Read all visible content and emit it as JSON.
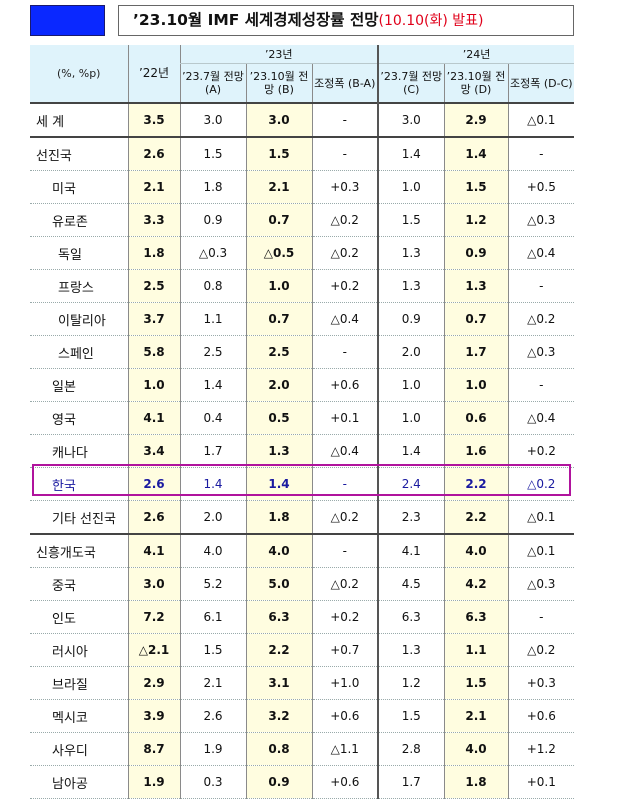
{
  "header": {
    "title_main": "’23.10월 IMF 세계경제성장률 전망",
    "title_note": "(10.10(화) 발표)"
  },
  "table": {
    "unit": "(%, %p)",
    "col_22": "’22년",
    "group_23": "’23년",
    "group_24": "’24년",
    "sub_headers": [
      "’23.7월 전망 (A)",
      "’23.10월 전망 (B)",
      "조정폭 (B-A)",
      "’23.7월 전망 (C)",
      "’23.10월 전망 (D)",
      "조정폭 (D-C)"
    ],
    "rows": [
      {
        "name": "세  계",
        "indent": 0,
        "v22": "3.5",
        "a": "3.0",
        "b": "3.0",
        "ba": "-",
        "c": "3.0",
        "d": "2.9",
        "dc": "△0.1"
      },
      {
        "name": "선진국",
        "indent": 0,
        "v22": "2.6",
        "a": "1.5",
        "b": "1.5",
        "ba": "-",
        "c": "1.4",
        "d": "1.4",
        "dc": "-"
      },
      {
        "name": "미국",
        "indent": 1,
        "v22": "2.1",
        "a": "1.8",
        "b": "2.1",
        "ba": "+0.3",
        "c": "1.0",
        "d": "1.5",
        "dc": "+0.5"
      },
      {
        "name": "유로존",
        "indent": 1,
        "v22": "3.3",
        "a": "0.9",
        "b": "0.7",
        "ba": "△0.2",
        "c": "1.5",
        "d": "1.2",
        "dc": "△0.3"
      },
      {
        "name": "독일",
        "indent": 2,
        "v22": "1.8",
        "a": "△0.3",
        "b": "△0.5",
        "ba": "△0.2",
        "c": "1.3",
        "d": "0.9",
        "dc": "△0.4"
      },
      {
        "name": "프랑스",
        "indent": 2,
        "v22": "2.5",
        "a": "0.8",
        "b": "1.0",
        "ba": "+0.2",
        "c": "1.3",
        "d": "1.3",
        "dc": "-"
      },
      {
        "name": "이탈리아",
        "indent": 2,
        "v22": "3.7",
        "a": "1.1",
        "b": "0.7",
        "ba": "△0.4",
        "c": "0.9",
        "d": "0.7",
        "dc": "△0.2"
      },
      {
        "name": "스페인",
        "indent": 2,
        "v22": "5.8",
        "a": "2.5",
        "b": "2.5",
        "ba": "-",
        "c": "2.0",
        "d": "1.7",
        "dc": "△0.3"
      },
      {
        "name": "일본",
        "indent": 1,
        "v22": "1.0",
        "a": "1.4",
        "b": "2.0",
        "ba": "+0.6",
        "c": "1.0",
        "d": "1.0",
        "dc": "-"
      },
      {
        "name": "영국",
        "indent": 1,
        "v22": "4.1",
        "a": "0.4",
        "b": "0.5",
        "ba": "+0.1",
        "c": "1.0",
        "d": "0.6",
        "dc": "△0.4"
      },
      {
        "name": "캐나다",
        "indent": 1,
        "v22": "3.4",
        "a": "1.7",
        "b": "1.3",
        "ba": "△0.4",
        "c": "1.4",
        "d": "1.6",
        "dc": "+0.2"
      },
      {
        "name": "한국",
        "indent": 1,
        "v22": "2.6",
        "a": "1.4",
        "b": "1.4",
        "ba": "-",
        "c": "2.4",
        "d": "2.2",
        "dc": "△0.2",
        "highlight": true
      },
      {
        "name": "기타 선진국",
        "indent": 1,
        "v22": "2.6",
        "a": "2.0",
        "b": "1.8",
        "ba": "△0.2",
        "c": "2.3",
        "d": "2.2",
        "dc": "△0.1"
      },
      {
        "name": "신흥개도국",
        "indent": 0,
        "v22": "4.1",
        "a": "4.0",
        "b": "4.0",
        "ba": "-",
        "c": "4.1",
        "d": "4.0",
        "dc": "△0.1"
      },
      {
        "name": "중국",
        "indent": 1,
        "v22": "3.0",
        "a": "5.2",
        "b": "5.0",
        "ba": "△0.2",
        "c": "4.5",
        "d": "4.2",
        "dc": "△0.3"
      },
      {
        "name": "인도",
        "indent": 1,
        "v22": "7.2",
        "a": "6.1",
        "b": "6.3",
        "ba": "+0.2",
        "c": "6.3",
        "d": "6.3",
        "dc": "-"
      },
      {
        "name": "러시아",
        "indent": 1,
        "v22": "△2.1",
        "a": "1.5",
        "b": "2.2",
        "ba": "+0.7",
        "c": "1.3",
        "d": "1.1",
        "dc": "△0.2"
      },
      {
        "name": "브라질",
        "indent": 1,
        "v22": "2.9",
        "a": "2.1",
        "b": "3.1",
        "ba": "+1.0",
        "c": "1.2",
        "d": "1.5",
        "dc": "+0.3"
      },
      {
        "name": "멕시코",
        "indent": 1,
        "v22": "3.9",
        "a": "2.6",
        "b": "3.2",
        "ba": "+0.6",
        "c": "1.5",
        "d": "2.1",
        "dc": "+0.6"
      },
      {
        "name": "사우디",
        "indent": 1,
        "v22": "8.7",
        "a": "1.9",
        "b": "0.8",
        "ba": "△1.1",
        "c": "2.8",
        "d": "4.0",
        "dc": "+1.2"
      },
      {
        "name": "남아공",
        "indent": 1,
        "v22": "1.9",
        "a": "0.3",
        "b": "0.9",
        "ba": "+0.6",
        "c": "1.7",
        "d": "1.8",
        "dc": "+0.1"
      }
    ]
  }
}
